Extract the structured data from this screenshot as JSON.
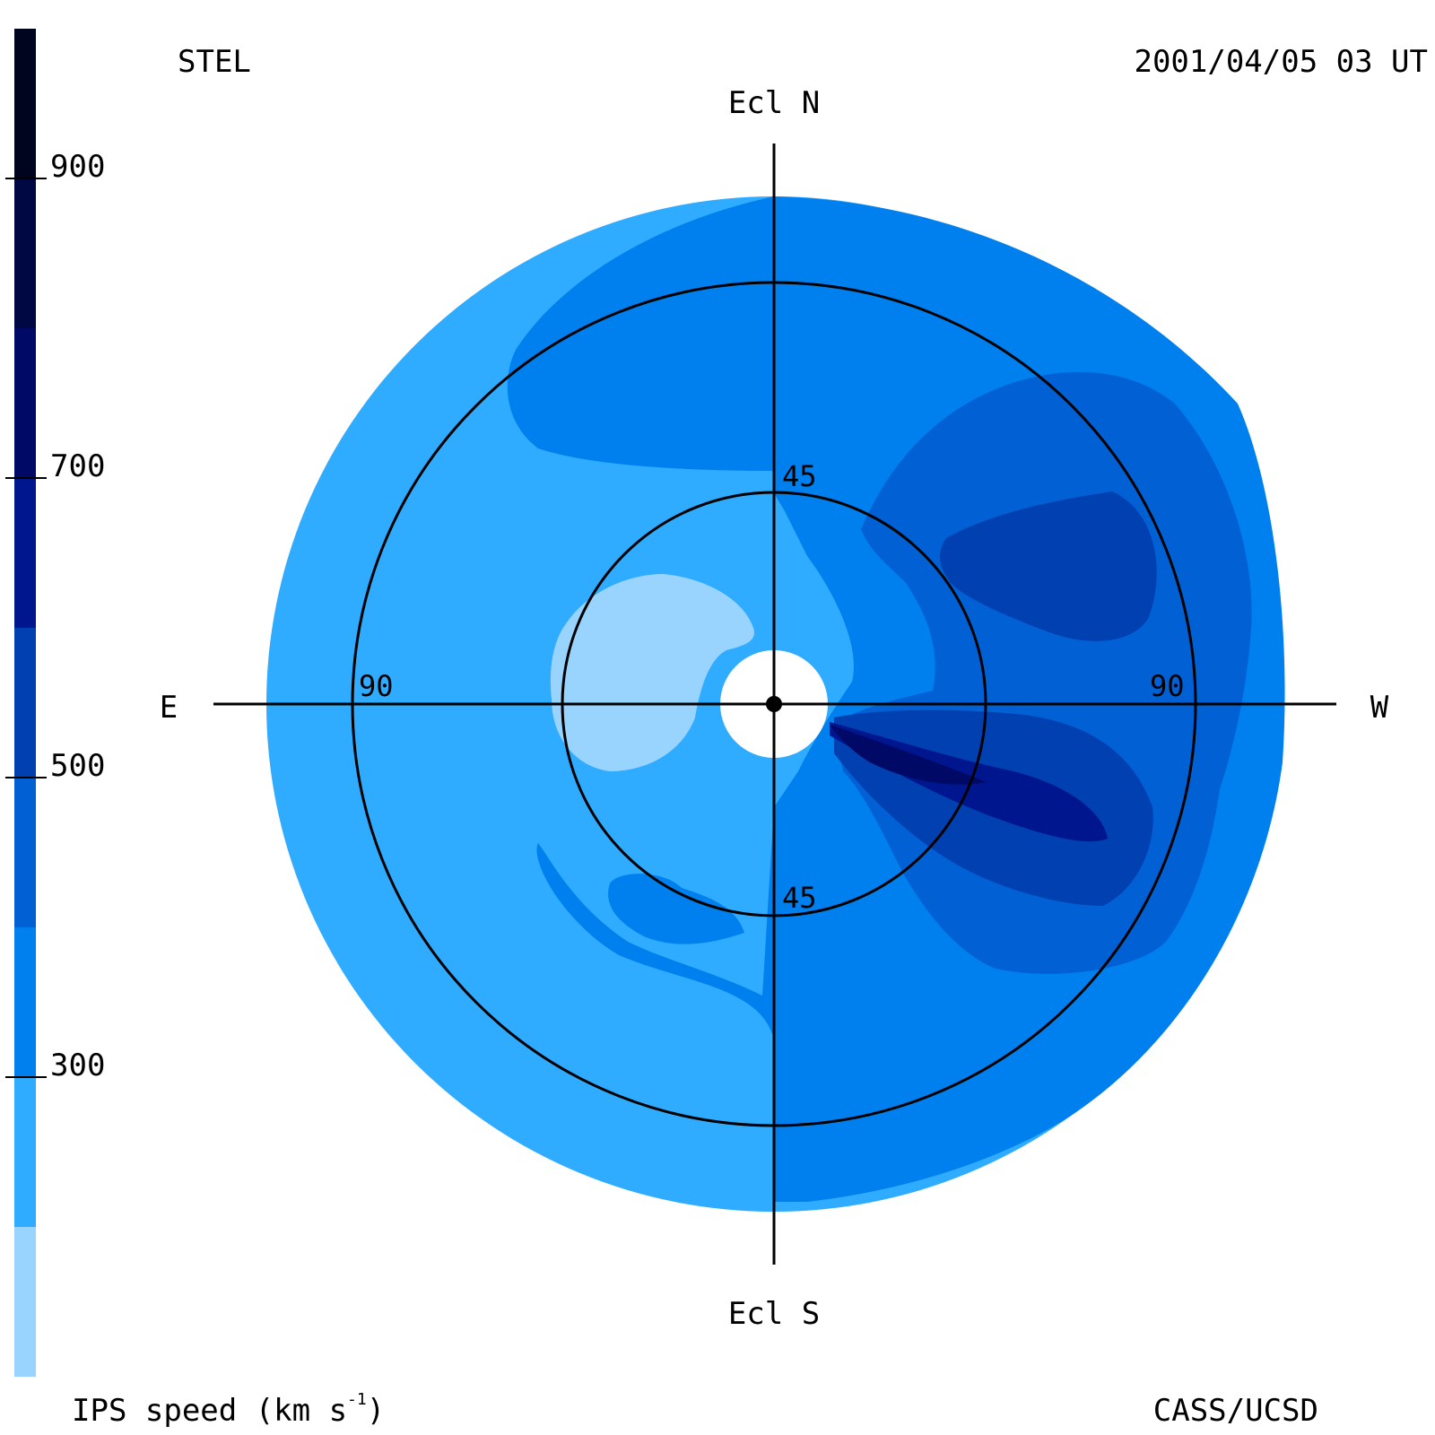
{
  "header": {
    "observatory": "STEL",
    "datetime": "2001/04/05 03 UT"
  },
  "footer": {
    "credit": "CASS/UCSD",
    "colorbar_label": "IPS speed (km s",
    "colorbar_label_exp": "-1",
    "colorbar_label_close": ")"
  },
  "colorbar": {
    "ticks": [
      "300",
      "500",
      "700",
      "900"
    ],
    "tick_values": [
      300,
      500,
      700,
      900
    ],
    "range": [
      100,
      1000
    ],
    "levels": [
      {
        "from": 100,
        "to": 200,
        "color": "#99d4ff"
      },
      {
        "from": 200,
        "to": 300,
        "color": "#2fabff"
      },
      {
        "from": 300,
        "to": 400,
        "color": "#0080ee"
      },
      {
        "from": 400,
        "to": 500,
        "color": "#0060d4"
      },
      {
        "from": 500,
        "to": 600,
        "color": "#0040b0"
      },
      {
        "from": 600,
        "to": 700,
        "color": "#00168e"
      },
      {
        "from": 700,
        "to": 800,
        "color": "#000a66"
      },
      {
        "from": 800,
        "to": 900,
        "color": "#000844"
      },
      {
        "from": 900,
        "to": 1000,
        "color": "#00051f"
      }
    ]
  },
  "sky_map": {
    "labels": {
      "north": "Ecl N",
      "south": "Ecl S",
      "east": "E",
      "west": "W"
    },
    "elongation_rings": [
      "45",
      "90"
    ],
    "ring_labels": [
      "45",
      "45",
      "90",
      "90"
    ],
    "background_speed_color": "#2fabff"
  }
}
